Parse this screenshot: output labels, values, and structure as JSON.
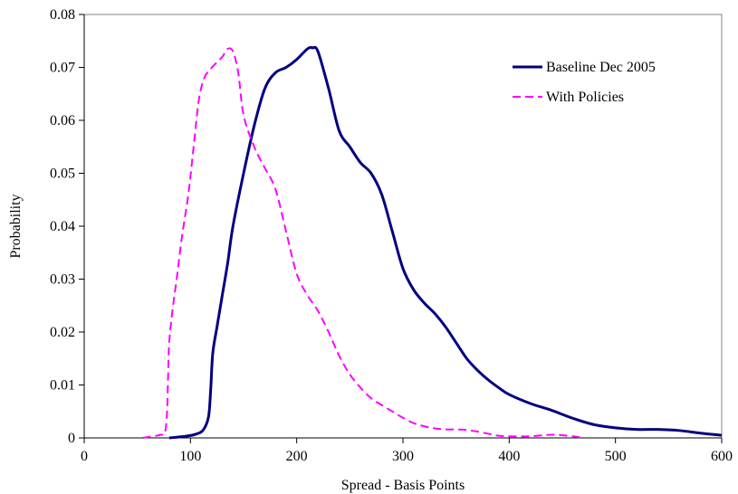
{
  "chart_data": {
    "type": "line",
    "title": "",
    "xlabel": "Spread - Basis Points",
    "ylabel": "Probability",
    "xlim": [
      0,
      600
    ],
    "ylim": [
      0,
      0.08
    ],
    "x_ticks": [
      0,
      100,
      200,
      300,
      400,
      500,
      600
    ],
    "x_tick_labels": [
      "0",
      "100",
      "200",
      "300",
      "400",
      "500",
      "600"
    ],
    "y_ticks": [
      0,
      0.01,
      0.02,
      0.03,
      0.04,
      0.05,
      0.06,
      0.07,
      0.08
    ],
    "y_tick_labels": [
      "0",
      "0.01",
      "0.02",
      "0.03",
      "0.04",
      "0.05",
      "0.06",
      "0.07",
      "0.08"
    ],
    "grid": false,
    "legend": "top-right",
    "series": [
      {
        "name": "Baseline Dec 2005",
        "color": "#000080",
        "dash": "solid",
        "points": [
          [
            80,
            0.0
          ],
          [
            95,
            0.0003
          ],
          [
            105,
            0.0007
          ],
          [
            112,
            0.0015
          ],
          [
            117,
            0.004
          ],
          [
            119,
            0.009
          ],
          [
            121,
            0.016
          ],
          [
            125,
            0.021
          ],
          [
            130,
            0.027
          ],
          [
            135,
            0.033
          ],
          [
            140,
            0.04
          ],
          [
            150,
            0.05
          ],
          [
            160,
            0.059
          ],
          [
            170,
            0.066
          ],
          [
            180,
            0.069
          ],
          [
            190,
            0.07
          ],
          [
            200,
            0.0715
          ],
          [
            210,
            0.0735
          ],
          [
            215,
            0.0737
          ],
          [
            220,
            0.073
          ],
          [
            230,
            0.066
          ],
          [
            240,
            0.058
          ],
          [
            250,
            0.055
          ],
          [
            260,
            0.052
          ],
          [
            270,
            0.05
          ],
          [
            280,
            0.046
          ],
          [
            290,
            0.039
          ],
          [
            300,
            0.032
          ],
          [
            310,
            0.028
          ],
          [
            320,
            0.0255
          ],
          [
            330,
            0.0235
          ],
          [
            340,
            0.021
          ],
          [
            350,
            0.018
          ],
          [
            360,
            0.015
          ],
          [
            370,
            0.0128
          ],
          [
            380,
            0.011
          ],
          [
            390,
            0.0095
          ],
          [
            400,
            0.0082
          ],
          [
            420,
            0.0065
          ],
          [
            440,
            0.0052
          ],
          [
            460,
            0.0037
          ],
          [
            480,
            0.0025
          ],
          [
            500,
            0.0019
          ],
          [
            520,
            0.0016
          ],
          [
            540,
            0.0016
          ],
          [
            560,
            0.0014
          ],
          [
            580,
            0.0009
          ],
          [
            600,
            0.0005
          ]
        ]
      },
      {
        "name": "With Policies",
        "color": "#ff00ff",
        "dash": "dashed",
        "points": [
          [
            55,
            0.0
          ],
          [
            65,
            0.0003
          ],
          [
            72,
            0.0006
          ],
          [
            76,
            0.001
          ],
          [
            78,
            0.005
          ],
          [
            79,
            0.012
          ],
          [
            80,
            0.018
          ],
          [
            83,
            0.024
          ],
          [
            87,
            0.03
          ],
          [
            92,
            0.038
          ],
          [
            98,
            0.046
          ],
          [
            103,
            0.055
          ],
          [
            108,
            0.064
          ],
          [
            113,
            0.068
          ],
          [
            118,
            0.0695
          ],
          [
            125,
            0.071
          ],
          [
            130,
            0.072
          ],
          [
            135,
            0.0735
          ],
          [
            140,
            0.073
          ],
          [
            145,
            0.069
          ],
          [
            150,
            0.061
          ],
          [
            160,
            0.055
          ],
          [
            170,
            0.051
          ],
          [
            180,
            0.047
          ],
          [
            190,
            0.039
          ],
          [
            200,
            0.031
          ],
          [
            210,
            0.027
          ],
          [
            220,
            0.024
          ],
          [
            230,
            0.02
          ],
          [
            240,
            0.0155
          ],
          [
            250,
            0.012
          ],
          [
            260,
            0.0095
          ],
          [
            270,
            0.0075
          ],
          [
            280,
            0.0062
          ],
          [
            290,
            0.005
          ],
          [
            300,
            0.0038
          ],
          [
            310,
            0.0028
          ],
          [
            320,
            0.0022
          ],
          [
            330,
            0.0018
          ],
          [
            340,
            0.0016
          ],
          [
            350,
            0.0016
          ],
          [
            360,
            0.0015
          ],
          [
            370,
            0.0012
          ],
          [
            380,
            0.0008
          ],
          [
            390,
            0.0004
          ],
          [
            400,
            0.0003
          ],
          [
            420,
            0.0003
          ],
          [
            440,
            0.0006
          ],
          [
            460,
            0.0003
          ],
          [
            470,
            0.0
          ]
        ]
      }
    ]
  }
}
